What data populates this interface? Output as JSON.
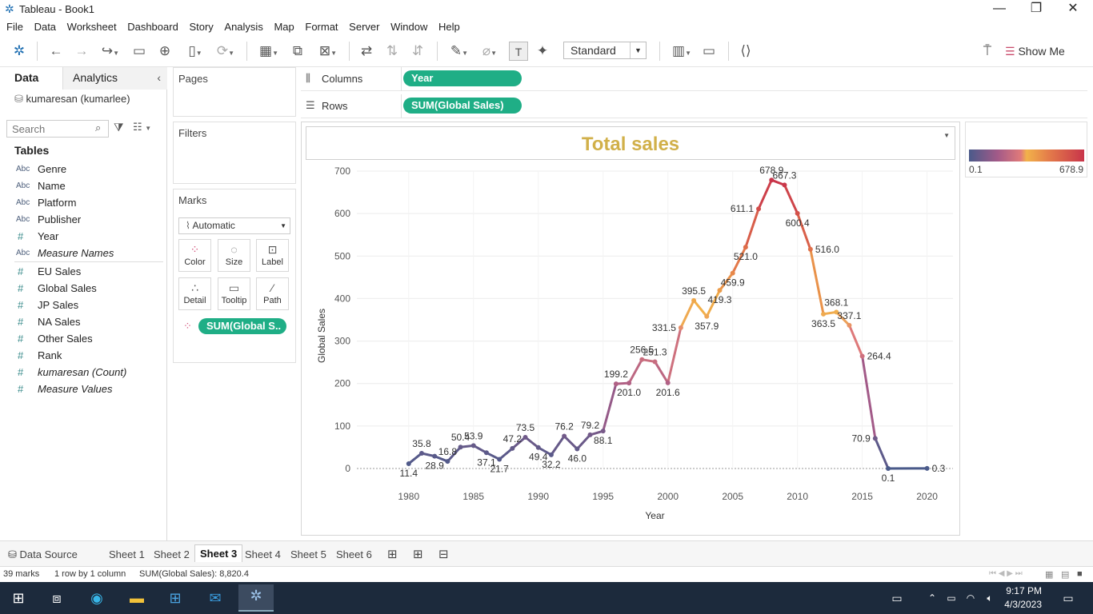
{
  "window": {
    "title": "Tableau - Book1"
  },
  "menu": [
    "File",
    "Data",
    "Worksheet",
    "Dashboard",
    "Story",
    "Analysis",
    "Map",
    "Format",
    "Server",
    "Window",
    "Help"
  ],
  "toolbar": {
    "fit_select": "Standard",
    "show_me": "Show Me"
  },
  "left_pane": {
    "tabs": {
      "data": "Data",
      "analytics": "Analytics"
    },
    "datasource": "kumaresan (kumarlee)",
    "search_placeholder": "Search",
    "tables_heading": "Tables",
    "fields": [
      {
        "type": "Abc",
        "name": "Genre",
        "italic": false
      },
      {
        "type": "Abc",
        "name": "Name",
        "italic": false
      },
      {
        "type": "Abc",
        "name": "Platform",
        "italic": false
      },
      {
        "type": "Abc",
        "name": "Publisher",
        "italic": false
      },
      {
        "type": "#",
        "name": "Year",
        "italic": false
      },
      {
        "type": "Abc",
        "name": "Measure Names",
        "italic": true
      },
      {
        "type": "#",
        "name": "EU Sales",
        "italic": false
      },
      {
        "type": "#",
        "name": "Global Sales",
        "italic": false
      },
      {
        "type": "#",
        "name": "JP Sales",
        "italic": false
      },
      {
        "type": "#",
        "name": "NA Sales",
        "italic": false
      },
      {
        "type": "#",
        "name": "Other Sales",
        "italic": false
      },
      {
        "type": "#",
        "name": "Rank",
        "italic": false
      },
      {
        "type": "#",
        "name": "kumaresan (Count)",
        "italic": true
      },
      {
        "type": "#",
        "name": "Measure Values",
        "italic": true
      }
    ]
  },
  "cards": {
    "pages": "Pages",
    "filters": "Filters",
    "marks": "Marks",
    "mark_type": "Automatic",
    "mark_buttons": [
      "Color",
      "Size",
      "Label",
      "Detail",
      "Tooltip",
      "Path"
    ],
    "color_pill": "SUM(Global S.."
  },
  "shelves": {
    "columns_label": "Columns",
    "columns_pill": "Year",
    "rows_label": "Rows",
    "rows_pill": "SUM(Global Sales)"
  },
  "legend": {
    "min": "0.1",
    "max": "678.9"
  },
  "chart_data": {
    "type": "line",
    "title": "Total sales",
    "xlabel": "Year",
    "ylabel": "Global Sales",
    "xlim": [
      1976,
      2022
    ],
    "ylim": [
      0,
      700
    ],
    "xticks": [
      1980,
      1985,
      1990,
      1995,
      2000,
      2005,
      2010,
      2015,
      2020
    ],
    "yticks": [
      0,
      100,
      200,
      300,
      400,
      500,
      600,
      700
    ],
    "points": [
      [
        1980,
        11.4,
        "11.4",
        "below"
      ],
      [
        1981,
        35.8,
        "35.8",
        "above"
      ],
      [
        1982,
        28.9,
        "28.9",
        "below"
      ],
      [
        1983,
        16.8,
        "16.8",
        "above"
      ],
      [
        1984,
        50.4,
        "50.4",
        "above"
      ],
      [
        1985,
        53.9,
        "53.9",
        "above"
      ],
      [
        1986,
        37.1,
        "37.1",
        "below"
      ],
      [
        1987,
        21.7,
        "21.7",
        "below"
      ],
      [
        1988,
        47.2,
        "47.2",
        "above"
      ],
      [
        1989,
        73.5,
        "73.5",
        "above"
      ],
      [
        1990,
        49.4,
        "49.4",
        "below"
      ],
      [
        1991,
        32.2,
        "32.2",
        "below"
      ],
      [
        1992,
        76.2,
        "76.2",
        "above"
      ],
      [
        1993,
        46.0,
        "46.0",
        "below"
      ],
      [
        1994,
        79.2,
        "79.2",
        "above"
      ],
      [
        1995,
        88.1,
        "88.1",
        "below"
      ],
      [
        1996,
        199.2,
        "199.2",
        "above"
      ],
      [
        1997,
        201.0,
        "201.0",
        "below"
      ],
      [
        1998,
        256.5,
        "256.5",
        "above"
      ],
      [
        1999,
        251.3,
        "251.3",
        "above"
      ],
      [
        2000,
        201.6,
        "201.6",
        "below"
      ],
      [
        2001,
        331.5,
        "331.5",
        "left"
      ],
      [
        2002,
        395.5,
        "395.5",
        "above"
      ],
      [
        2003,
        357.9,
        "357.9",
        "below"
      ],
      [
        2004,
        419.3,
        "419.3",
        "below"
      ],
      [
        2005,
        459.9,
        "459.9",
        "below"
      ],
      [
        2006,
        521.0,
        "521.0",
        "below"
      ],
      [
        2007,
        611.1,
        "611.1",
        "left"
      ],
      [
        2008,
        678.9,
        "678.9",
        "above"
      ],
      [
        2009,
        667.3,
        "667.3",
        "above"
      ],
      [
        2010,
        600.4,
        "600.4",
        "below"
      ],
      [
        2011,
        516.0,
        "516.0",
        "right"
      ],
      [
        2012,
        363.5,
        "363.5",
        "below"
      ],
      [
        2013,
        368.1,
        "368.1",
        "above"
      ],
      [
        2014,
        337.1,
        "337.1",
        "above"
      ],
      [
        2015,
        264.4,
        "264.4",
        "right"
      ],
      [
        2016,
        70.9,
        "70.9",
        "left"
      ],
      [
        2017,
        0.1,
        "0.1",
        "below"
      ],
      [
        2020,
        0.3,
        "0.3",
        "right"
      ]
    ],
    "color_range": [
      0.1,
      678.9
    ],
    "grid": true
  },
  "sheet_tabs": {
    "datasource": "Data Source",
    "sheets": [
      "Sheet 1",
      "Sheet 2",
      "Sheet 3",
      "Sheet 4",
      "Sheet 5",
      "Sheet 6"
    ],
    "active": "Sheet 3"
  },
  "status": {
    "marks": "39 marks",
    "rows": "1 row by 1 column",
    "sum": "SUM(Global Sales): 8,820.4"
  },
  "clock": {
    "time": "9:17 PM",
    "date": "4/3/2023"
  }
}
